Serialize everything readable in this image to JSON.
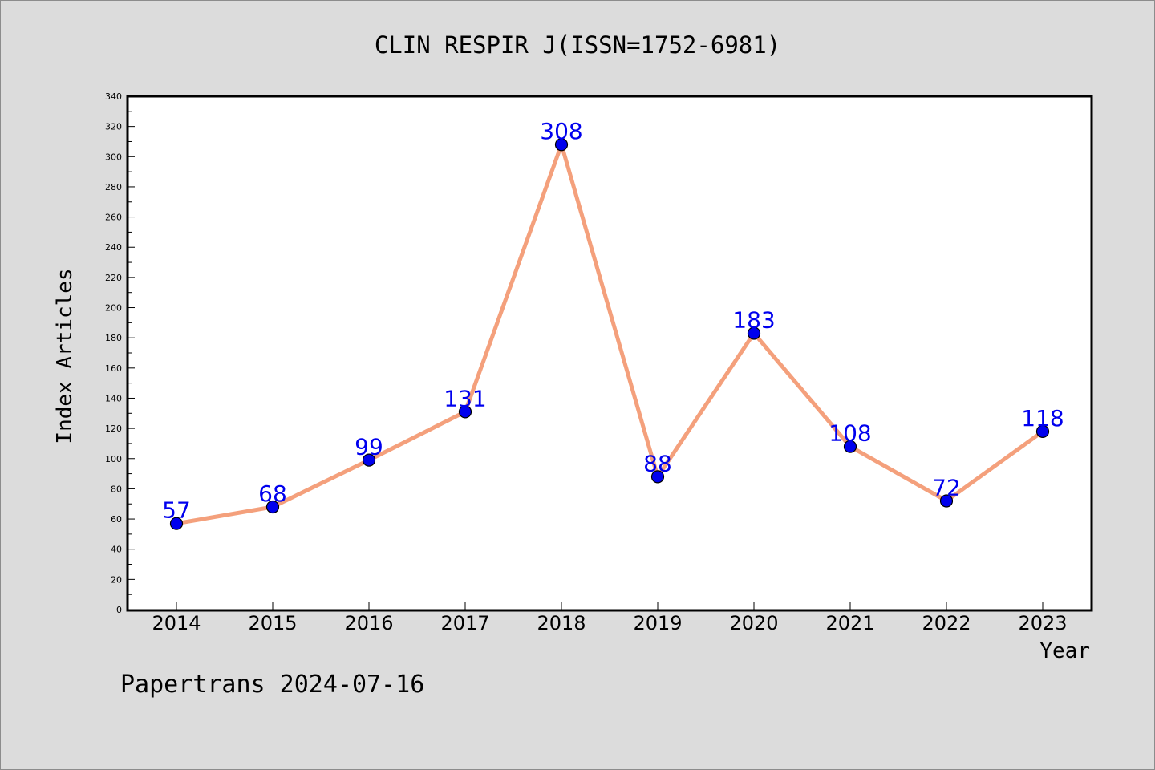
{
  "chart_data": {
    "type": "line",
    "title": "CLIN RESPIR J(ISSN=1752-6981)",
    "xlabel": "Year",
    "ylabel": "Index Articles",
    "x": [
      "2014",
      "2015",
      "2016",
      "2017",
      "2018",
      "2019",
      "2020",
      "2021",
      "2022",
      "2023"
    ],
    "values": [
      57,
      68,
      99,
      131,
      308,
      88,
      183,
      108,
      72,
      118
    ],
    "ylim": [
      0,
      340
    ],
    "yticks": [
      0,
      20,
      40,
      60,
      80,
      100,
      120,
      140,
      160,
      180,
      200,
      220,
      240,
      260,
      280,
      300,
      320,
      340
    ],
    "grid": false,
    "legend": "none",
    "line_color": "#f4a07c",
    "marker_color": "#0000ee",
    "label_color": "#0000ee"
  },
  "footer": "Papertrans 2024-07-16"
}
